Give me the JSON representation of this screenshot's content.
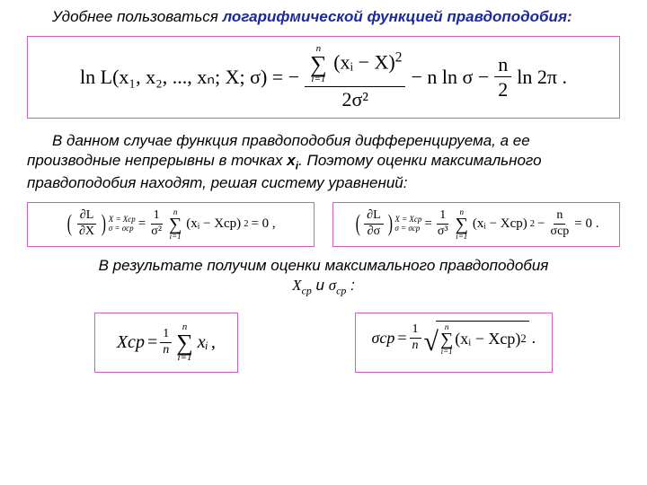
{
  "text": {
    "intro_plain": "Удобнее пользоваться ",
    "intro_emph": "логарифмической функцией правдоподобия:",
    "para1_a": "В данном случае функция правдоподобия дифференцируема, а ее производные непрерывны в точках ",
    "para1_b": ". Поэтому оценки максимального правдоподобия находят, решая систему уравнений:",
    "result_a": "В результате получим оценки максимального правдоподобия",
    "result_b": " и ",
    "result_c": " :"
  },
  "sym": {
    "xi": "x",
    "i": "i",
    "Xcp": "X",
    "cp": "ср",
    "sigma": "σ"
  },
  "formula": {
    "lnL_left": "ln L(x₁, x₂, ..., xₙ; X; σ)  =  −",
    "sum_top": "n",
    "sum_bot": "i=1",
    "xiX": "(xᵢ − X)",
    "sq": "2",
    "two_sigma2": "2σ²",
    "minus_nlnsigma": " − n ln σ − ",
    "n": "n",
    "two": "2",
    "ln2pi": " ln 2π  .",
    "dLdX": "∂L",
    "dX": "∂X",
    "dSigma": "∂σ",
    "cond1": "X = Xср",
    "cond2": "σ = σср",
    "eq": " = ",
    "one": "1",
    "sigma2": "σ²",
    "sigma3": "σ³",
    "xiXcp": "(xᵢ − Xср)",
    "eq0c": " = 0  ,",
    "minus": " − ",
    "n_over_sigma": "σср",
    "eq0p": " = 0  .",
    "Xcp_eq": "Xср",
    "one_n": "n",
    "xi_only": "xᵢ",
    "comma": "  ,",
    "sigma_cp": "σср",
    "period": "  ."
  }
}
